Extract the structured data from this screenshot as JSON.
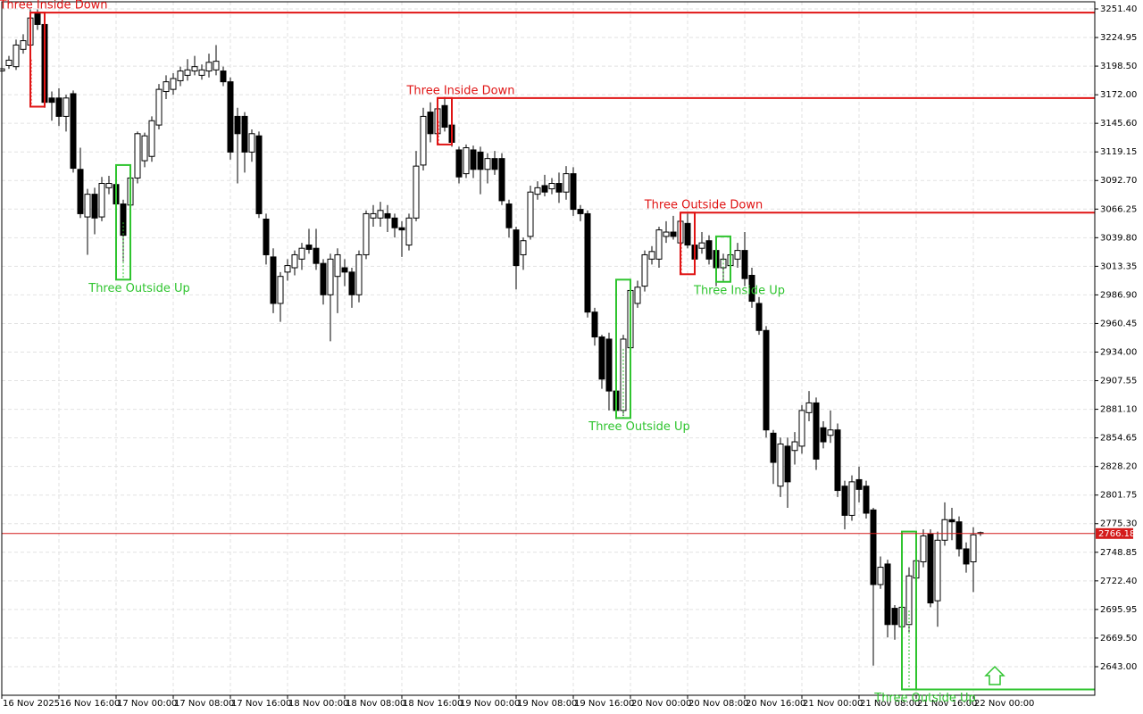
{
  "chart_data": {
    "type": "candlestick",
    "categories": [
      "16 Nov 2025",
      null,
      null,
      null,
      null,
      null,
      null,
      null,
      "16 Nov 16:00",
      null,
      null,
      null,
      null,
      null,
      null,
      null,
      "17 Nov 00:00",
      null,
      null,
      null,
      null,
      null,
      null,
      null,
      "17 Nov 08:00",
      null,
      null,
      null,
      null,
      null,
      null,
      null,
      "17 Nov 16:00",
      null,
      null,
      null,
      null,
      null,
      null,
      null,
      "18 Nov 00:00",
      null,
      null,
      null,
      null,
      null,
      null,
      null,
      "18 Nov 08:00",
      null,
      null,
      null,
      null,
      null,
      null,
      null,
      "18 Nov 16:00",
      null,
      null,
      null,
      null,
      null,
      null,
      null,
      "19 Nov 00:00",
      null,
      null,
      null,
      null,
      null,
      null,
      null,
      "19 Nov 08:00",
      null,
      null,
      null,
      null,
      null,
      null,
      null,
      "19 Nov 16:00",
      null,
      null,
      null,
      null,
      null,
      null,
      null,
      "20 Nov 00:00",
      null,
      null,
      null,
      null,
      null,
      null,
      null,
      "20 Nov 08:00",
      null,
      null,
      null,
      null,
      null,
      null,
      null,
      "20 Nov 16:00",
      null,
      null,
      null,
      null,
      null,
      null,
      null,
      "21 Nov 00:00",
      null,
      null,
      null,
      null,
      null,
      null,
      null,
      "21 Nov 08:00",
      null,
      null,
      null,
      null,
      null,
      null,
      null,
      "21 Nov 16:00",
      null,
      null,
      null,
      null,
      null,
      null,
      null,
      "22 Nov 00:00",
      null
    ],
    "open": [
      3194,
      3199,
      3198,
      3214,
      3218,
      3247,
      3237,
      3169,
      3169,
      3152,
      3173,
      3103,
      3059,
      3080,
      3059,
      3086,
      3089,
      3071,
      3070,
      3095,
      3111,
      3115,
      3144,
      3175,
      3177,
      3185,
      3190,
      3194,
      3190,
      3194,
      3195,
      3194,
      3184,
      3152,
      3152,
      3119,
      3134,
      3057,
      3022,
      2979,
      3008,
      3012,
      3020,
      3033,
      3030,
      3016,
      2987,
      3004,
      3012,
      3008,
      2987,
      3024,
      3058,
      3058,
      3062,
      3058,
      3049,
      3033,
      3058,
      3107,
      3156,
      3136,
      3162,
      3144,
      3121,
      3099,
      3121,
      3119,
      3103,
      3113,
      3113,
      3071,
      3047,
      3024,
      3041,
      3080,
      3088,
      3085,
      3090,
      3082,
      3099,
      3066,
      3062,
      2971,
      2948,
      2946,
      2898,
      2880,
      2938,
      2979,
      2995,
      3020,
      3020,
      3041,
      3045,
      3035,
      3053,
      3033,
      3030,
      3037,
      3028,
      3012,
      3014,
      3020,
      3028,
      3005,
      2979,
      2954,
      2859,
      2810,
      2847,
      2843,
      2847,
      2878,
      2887,
      2864,
      2857,
      2862,
      2810,
      2783,
      2816,
      2810,
      2788,
      2719,
      2738,
      2697,
      2680,
      2682,
      2725,
      2740,
      2766,
      2704,
      2760,
      2779,
      2777,
      2752,
      2740,
      2767
    ],
    "high": [
      3199,
      3208,
      3223,
      3228,
      3251,
      3251,
      3240,
      3175,
      3178,
      3172,
      3176,
      3123,
      3085,
      3086,
      3096,
      3097,
      3096,
      3075,
      3098,
      3138,
      3137,
      3152,
      3182,
      3190,
      3192,
      3198,
      3205,
      3208,
      3200,
      3210,
      3218,
      3198,
      3188,
      3160,
      3156,
      3140,
      3138,
      3062,
      3030,
      3008,
      3020,
      3028,
      3035,
      3048,
      3048,
      3020,
      3025,
      3030,
      3020,
      3012,
      3028,
      3065,
      3070,
      3073,
      3070,
      3062,
      3055,
      3062,
      3120,
      3160,
      3165,
      3168,
      3170,
      3146,
      3124,
      3126,
      3125,
      3124,
      3118,
      3120,
      3118,
      3075,
      3050,
      3040,
      3088,
      3092,
      3098,
      3095,
      3100,
      3106,
      3105,
      3070,
      3065,
      2975,
      2950,
      2952,
      2905,
      2950,
      3000,
      3000,
      3028,
      3032,
      3050,
      3055,
      3060,
      3062,
      3062,
      3040,
      3045,
      3042,
      3035,
      3025,
      3030,
      3035,
      3045,
      3012,
      2985,
      2958,
      2862,
      2855,
      2855,
      2860,
      2885,
      2898,
      2892,
      2870,
      2880,
      2868,
      2815,
      2820,
      2828,
      2815,
      2790,
      2745,
      2742,
      2700,
      2705,
      2735,
      2748,
      2770,
      2770,
      2768,
      2795,
      2790,
      2782,
      2758,
      2772,
      2768
    ],
    "low": [
      3190,
      3196,
      3195,
      3210,
      3214,
      3232,
      3160,
      3148,
      3143,
      3138,
      3100,
      3058,
      3024,
      3043,
      3055,
      3080,
      3045,
      3018,
      3060,
      3090,
      3105,
      3110,
      3140,
      3168,
      3172,
      3180,
      3185,
      3190,
      3186,
      3188,
      3190,
      3180,
      3112,
      3090,
      3100,
      3110,
      3058,
      3015,
      2970,
      2962,
      3000,
      3005,
      3010,
      3025,
      3010,
      2978,
      2944,
      2970,
      2995,
      2975,
      2980,
      3020,
      3050,
      3050,
      3045,
      3040,
      3022,
      3028,
      3055,
      3102,
      3128,
      3130,
      3138,
      3124,
      3090,
      3095,
      3095,
      3080,
      3090,
      3098,
      3070,
      3040,
      2992,
      3010,
      3038,
      3075,
      3078,
      3080,
      3072,
      3075,
      3060,
      3055,
      2966,
      2940,
      2900,
      2880,
      2872,
      2875,
      2935,
      2975,
      2990,
      3015,
      3012,
      3035,
      3038,
      3025,
      3030,
      3010,
      3025,
      3015,
      2995,
      3000,
      3005,
      3012,
      2995,
      2975,
      2950,
      2855,
      2812,
      2800,
      2790,
      2830,
      2840,
      2870,
      2825,
      2845,
      2850,
      2800,
      2770,
      2778,
      2795,
      2780,
      2644,
      2715,
      2670,
      2668,
      2640,
      2675,
      2718,
      2735,
      2698,
      2680,
      2755,
      2760,
      2745,
      2730,
      2712,
      2764
    ],
    "close": [
      3196,
      3204,
      3218,
      3222,
      3243,
      3237,
      3165,
      3165,
      3152,
      3169,
      3104,
      3062,
      3080,
      3058,
      3090,
      3090,
      3071,
      3042,
      3095,
      3136,
      3134,
      3148,
      3177,
      3184,
      3187,
      3194,
      3195,
      3198,
      3195,
      3202,
      3203,
      3184,
      3119,
      3136,
      3119,
      3136,
      3062,
      3024,
      2979,
      3004,
      3014,
      3024,
      3030,
      3029,
      3016,
      2987,
      3020,
      3024,
      3008,
      2987,
      3024,
      3062,
      3062,
      3065,
      3058,
      3049,
      3047,
      3058,
      3106,
      3152,
      3136,
      3159,
      3142,
      3128,
      3096,
      3123,
      3103,
      3103,
      3113,
      3103,
      3074,
      3049,
      3014,
      3037,
      3082,
      3086,
      3082,
      3090,
      3082,
      3099,
      3066,
      3062,
      2971,
      2948,
      2909,
      2898,
      2880,
      2946,
      2991,
      2994,
      3024,
      3027,
      3047,
      3045,
      3041,
      3055,
      3033,
      3020,
      3035,
      3020,
      3012,
      3020,
      3024,
      3028,
      3002,
      2981,
      2954,
      2862,
      2832,
      2849,
      2814,
      2851,
      2880,
      2887,
      2835,
      2851,
      2862,
      2806,
      2783,
      2814,
      2807,
      2785,
      2719,
      2735,
      2682,
      2682,
      2698,
      2727,
      2741,
      2764,
      2702,
      2760,
      2779,
      2777,
      2752,
      2738,
      2765,
      2766.18
    ],
    "ylim": [
      2616.6,
      3258.0
    ],
    "yticks": [
      {
        "value": 3251.4,
        "label": "3251.40"
      },
      3224.95,
      {
        "value": 3198.5,
        "label": "3198.50"
      },
      {
        "value": 3172,
        "label": "3172.00"
      },
      {
        "value": 3145.6,
        "label": "3145.60"
      },
      3119.15,
      {
        "value": 3092.7,
        "label": "3092.70"
      },
      3066.25,
      {
        "value": 3039.8,
        "label": "3039.80"
      },
      3013.35,
      {
        "value": 2986.9,
        "label": "2986.90"
      },
      2960.45,
      {
        "value": 2934,
        "label": "2934.00"
      },
      2907.55,
      {
        "value": 2881.1,
        "label": "2881.10"
      },
      2854.65,
      {
        "value": 2828.2,
        "label": "2828.20"
      },
      2801.75,
      {
        "value": 2775.3,
        "label": "2775.30"
      },
      2748.85,
      {
        "value": 2722.4,
        "label": "2722.40"
      },
      2695.95,
      {
        "value": 2669.5,
        "label": "2669.50"
      },
      {
        "value": 2643,
        "label": "2643.00"
      }
    ],
    "grid": true,
    "up_color": "#ffffff",
    "down_color": "#000000",
    "wick_color": "#000000",
    "price_line_color": "#d41c1c",
    "patterns": [
      {
        "name": "Three Inside Down",
        "start": 4,
        "end": 6,
        "high": 3248,
        "low": 3161,
        "direction": "down",
        "color": "#e01414",
        "line": true
      },
      {
        "name": "Three Outside Up",
        "start": 16,
        "end": 18,
        "high": 3107,
        "low": 3001,
        "direction": "up",
        "color": "#2fc42f",
        "line": false
      },
      {
        "name": "Three Inside Down",
        "start": 61,
        "end": 63,
        "high": 3169,
        "low": 3126,
        "direction": "down",
        "color": "#e01414",
        "line": true
      },
      {
        "name": "Three Outside Up",
        "start": 86,
        "end": 88,
        "high": 3001,
        "low": 2873,
        "direction": "up",
        "color": "#2fc42f",
        "line": false
      },
      {
        "name": "Three Outside Down",
        "start": 95,
        "end": 97,
        "high": 3063,
        "low": 3006,
        "direction": "down",
        "color": "#e01414",
        "line": true
      },
      {
        "name": "Three Inside Up",
        "start": 100,
        "end": 102,
        "high": 3041,
        "low": 2999,
        "direction": "up",
        "color": "#2fc42f",
        "line": false
      },
      {
        "name": "Three Outside Up",
        "start": 126,
        "end": 128,
        "high": 2768,
        "low": 2622,
        "direction": "up",
        "color": "#2fc42f",
        "line": true
      }
    ]
  }
}
